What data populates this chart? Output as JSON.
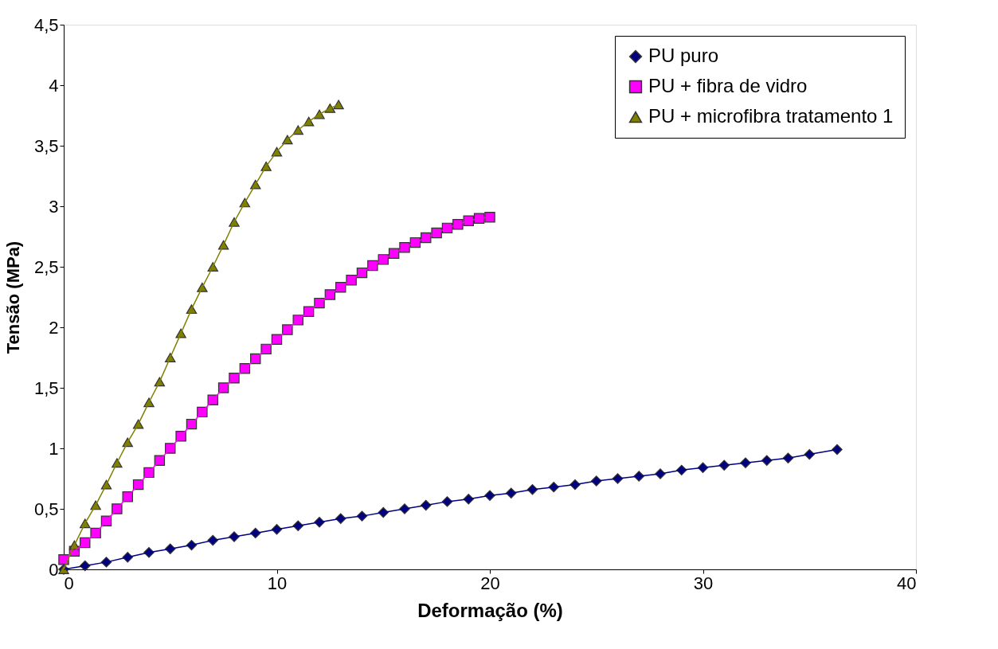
{
  "chart_data": {
    "type": "line",
    "xlabel": "Deformação (%)",
    "ylabel": "Tensão (MPa)",
    "xlim": [
      0,
      40
    ],
    "xticks": [
      0,
      10,
      20,
      30,
      40
    ],
    "ylim": [
      0,
      4.5
    ],
    "yticks": [
      0,
      {
        "value": 0.5,
        "label": "0,5"
      },
      1,
      {
        "value": 1.5,
        "label": "1,5"
      },
      2,
      {
        "value": 2.5,
        "label": "2,5"
      },
      3,
      {
        "value": 3.5,
        "label": "3,5"
      },
      4,
      {
        "value": 4.5,
        "label": "4,5"
      }
    ],
    "grid": false,
    "legend": "top right",
    "line_style": "solid",
    "series": [
      {
        "name": "PU puro",
        "color": "#000080",
        "marker": "diamond",
        "x": [
          0,
          1,
          2,
          3,
          4,
          5,
          6,
          7,
          8,
          9,
          10,
          11,
          12,
          13,
          14,
          15,
          16,
          17,
          18,
          19,
          20,
          21,
          22,
          23,
          24,
          25,
          26,
          27,
          28,
          29,
          30,
          31,
          32,
          33,
          34,
          35,
          36.3
        ],
        "values": [
          0,
          0.03,
          0.06,
          0.1,
          0.14,
          0.17,
          0.2,
          0.24,
          0.27,
          0.3,
          0.33,
          0.36,
          0.39,
          0.42,
          0.44,
          0.47,
          0.5,
          0.53,
          0.56,
          0.58,
          0.61,
          0.63,
          0.66,
          0.68,
          0.7,
          0.73,
          0.75,
          0.77,
          0.79,
          0.82,
          0.84,
          0.86,
          0.88,
          0.9,
          0.92,
          0.95,
          0.99
        ]
      },
      {
        "name": "PU + fibra de vidro",
        "color": "#ff00ff",
        "marker": "square",
        "x": [
          0,
          0.5,
          1,
          1.5,
          2,
          2.5,
          3,
          3.5,
          4,
          4.5,
          5,
          5.5,
          6,
          6.5,
          7,
          7.5,
          8,
          8.5,
          9,
          9.5,
          10,
          10.5,
          11,
          11.5,
          12,
          12.5,
          13,
          13.5,
          14,
          14.5,
          15,
          15.5,
          16,
          16.5,
          17,
          17.5,
          18,
          18.5,
          19,
          19.5,
          20
        ],
        "values": [
          0.08,
          0.15,
          0.22,
          0.3,
          0.4,
          0.5,
          0.6,
          0.7,
          0.8,
          0.9,
          1.0,
          1.1,
          1.2,
          1.3,
          1.4,
          1.5,
          1.58,
          1.66,
          1.74,
          1.82,
          1.9,
          1.98,
          2.06,
          2.13,
          2.2,
          2.27,
          2.33,
          2.39,
          2.45,
          2.51,
          2.56,
          2.61,
          2.66,
          2.7,
          2.74,
          2.78,
          2.82,
          2.85,
          2.88,
          2.9,
          2.91
        ]
      },
      {
        "name": "PU + microfibra tratamento 1",
        "color": "#808000",
        "marker": "triangle",
        "x": [
          0,
          0.5,
          1,
          1.5,
          2,
          2.5,
          3,
          3.5,
          4,
          4.5,
          5,
          5.5,
          6,
          6.5,
          7,
          7.5,
          8,
          8.5,
          9,
          9.5,
          10,
          10.5,
          11,
          11.5,
          12,
          12.5,
          12.9
        ],
        "values": [
          0,
          0.2,
          0.38,
          0.53,
          0.7,
          0.88,
          1.05,
          1.2,
          1.38,
          1.55,
          1.75,
          1.95,
          2.15,
          2.33,
          2.5,
          2.68,
          2.87,
          3.03,
          3.18,
          3.33,
          3.45,
          3.55,
          3.63,
          3.7,
          3.76,
          3.81,
          3.84
        ]
      }
    ]
  }
}
